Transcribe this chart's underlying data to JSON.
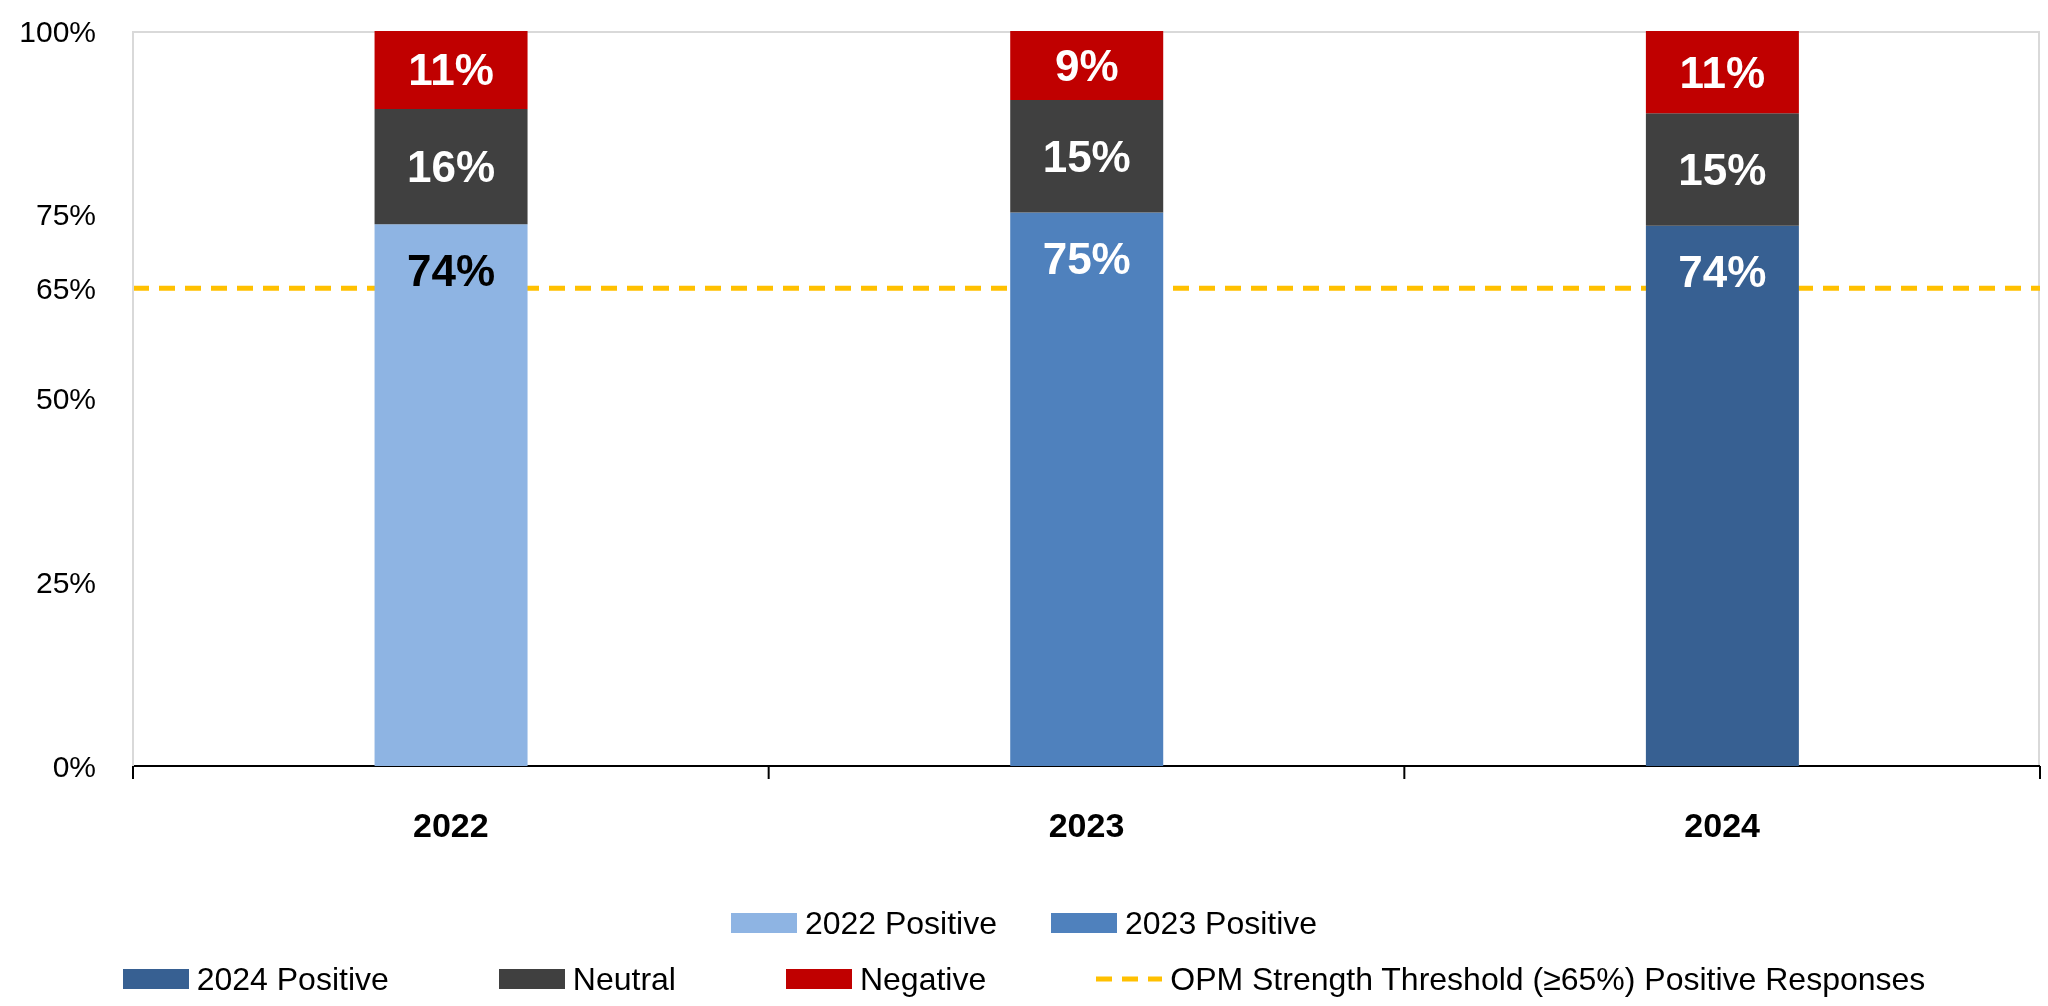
{
  "chart_data": {
    "type": "bar",
    "stacked": true,
    "categories": [
      "2022",
      "2023",
      "2024"
    ],
    "series": [
      {
        "name": "2022 Positive",
        "color": "#8eb4e3",
        "values": [
          73.7,
          null,
          null
        ],
        "value_labels": [
          "74%",
          null,
          null
        ]
      },
      {
        "name": "2023 Positive",
        "color": "#4f81bd",
        "values": [
          null,
          75.3,
          null
        ],
        "value_labels": [
          null,
          "75%",
          null
        ]
      },
      {
        "name": "2024 Positive",
        "color": "#376092",
        "values": [
          null,
          null,
          73.5
        ],
        "value_labels": [
          null,
          null,
          "74%"
        ]
      },
      {
        "name": "Neutral",
        "color": "#404040",
        "values": [
          15.7,
          15.3,
          15.3
        ],
        "value_labels": [
          "16%",
          "15%",
          "15%"
        ]
      },
      {
        "name": "Negative",
        "color": "#c00000",
        "values": [
          10.6,
          9.4,
          11.2
        ],
        "value_labels": [
          "11%",
          "9%",
          "11%"
        ]
      }
    ],
    "ylim": [
      0,
      100
    ],
    "yticks": [
      {
        "value": 0,
        "label": "0%"
      },
      {
        "value": 25,
        "label": "25%"
      },
      {
        "value": 50,
        "label": "50%"
      },
      {
        "value": 65,
        "label": "65%"
      },
      {
        "value": 75,
        "label": "75%"
      },
      {
        "value": 100,
        "label": "100%"
      }
    ],
    "ref_lines": [
      {
        "axis": "y",
        "value": 65,
        "label": "OPM Strength Threshold (≥65%) Positive Responses",
        "color": "#ffc000",
        "line_style": "dashed"
      }
    ],
    "legend": "bottom"
  }
}
